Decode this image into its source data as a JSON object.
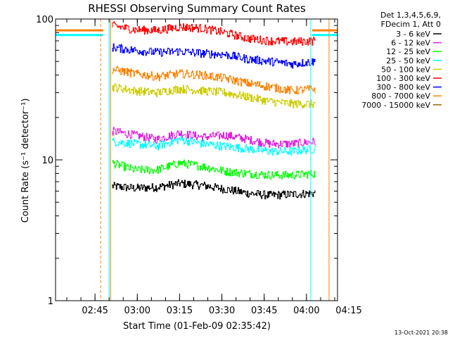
{
  "chart_data": {
    "type": "line",
    "title": "RHESSI Observing Summary Count Rates",
    "xlabel": "Start Time (01-Feb-09 02:35:42)",
    "ylabel": "Count Rate (s⁻¹ detector⁻¹)",
    "yscale": "log",
    "ylim": [
      1,
      100
    ],
    "y_ticks": [
      {
        "value": 1,
        "label": "1"
      },
      {
        "value": 10,
        "label": "10"
      },
      {
        "value": 100,
        "label": "100"
      }
    ],
    "xlim": [
      0,
      100
    ],
    "x_ticks": [
      {
        "value": 14,
        "label": "02:45"
      },
      {
        "value": 29,
        "label": "03:00"
      },
      {
        "value": 44,
        "label": "03:15"
      },
      {
        "value": 59,
        "label": "03:30"
      },
      {
        "value": 74,
        "label": "03:45"
      },
      {
        "value": 89,
        "label": "04:00"
      },
      {
        "value": 104,
        "label": "04:15"
      }
    ],
    "legend_header": [
      "Det 1,3,4,5,6,9,",
      "FDecim 1, Att 0"
    ],
    "series": [
      {
        "name": "3 - 6 keV",
        "color": "#000000",
        "x": [
          20,
          28,
          36,
          44,
          52,
          60,
          68,
          76,
          84,
          92
        ],
        "values": [
          6.5,
          6.3,
          6.4,
          6.8,
          6.6,
          6.2,
          5.8,
          5.6,
          5.7,
          5.8
        ]
      },
      {
        "name": "6 - 12 keV",
        "color": "#e020e0",
        "x": [
          20,
          28,
          36,
          44,
          52,
          60,
          68,
          76,
          84,
          92
        ],
        "values": [
          16,
          15,
          14,
          15.5,
          14.5,
          15,
          14,
          13,
          13,
          13.5
        ]
      },
      {
        "name": "12 - 25 keV",
        "color": "#00ff00",
        "x": [
          20,
          28,
          36,
          44,
          52,
          60,
          68,
          76,
          84,
          92
        ],
        "values": [
          9.5,
          8.5,
          8.5,
          9.5,
          9.0,
          8.3,
          8.0,
          7.8,
          7.8,
          8.0
        ]
      },
      {
        "name": "25 - 50 keV",
        "color": "#00ffff",
        "x": [
          20,
          28,
          36,
          44,
          52,
          60,
          68,
          76,
          84,
          92
        ],
        "values": [
          13.5,
          13,
          12.5,
          14,
          13,
          12.5,
          12,
          11.5,
          11.5,
          12
        ]
      },
      {
        "name": "50 - 100 keV",
        "color": "#cccc00",
        "x": [
          20,
          28,
          36,
          44,
          52,
          60,
          68,
          76,
          84,
          92
        ],
        "values": [
          33,
          31,
          30,
          32,
          31,
          30,
          28,
          26,
          25,
          25
        ]
      },
      {
        "name": "100 - 300 keV",
        "color": "#ff0000",
        "x": [
          20,
          28,
          36,
          44,
          52,
          60,
          68,
          76,
          84,
          92
        ],
        "values": [
          90,
          84,
          83,
          88,
          86,
          80,
          73,
          70,
          69,
          70
        ]
      },
      {
        "name": "300 - 800 keV",
        "color": "#0000ff",
        "x": [
          20,
          28,
          36,
          44,
          52,
          60,
          68,
          76,
          84,
          92
        ],
        "values": [
          63,
          60,
          58,
          59,
          57,
          56,
          52,
          50,
          48,
          50
        ]
      },
      {
        "name": "800 - 7000 keV",
        "color": "#ff8000",
        "x": [
          20,
          28,
          36,
          44,
          52,
          60,
          68,
          76,
          84,
          92
        ],
        "values": [
          44,
          41,
          39,
          41,
          40,
          38,
          35,
          33,
          31,
          32
        ]
      },
      {
        "name": "7000 - 15000 keV",
        "color": "#a06000",
        "x": [],
        "values": []
      }
    ],
    "flat_segments": [
      {
        "color": "#00ffff",
        "x": [
          0,
          17
        ],
        "value": 77
      },
      {
        "color": "#ff8000",
        "x": [
          0,
          17
        ],
        "value": 83
      },
      {
        "color": "#00ffff",
        "x": [
          91,
          100
        ],
        "value": 77
      },
      {
        "color": "#ff8000",
        "x": [
          91,
          100
        ],
        "value": 83
      }
    ],
    "vertical_markers": [
      {
        "x": 16,
        "color": "#ff8000",
        "style": "dashed"
      },
      {
        "x": 19,
        "color": "#00ffff",
        "style": "solid"
      },
      {
        "x": 19.5,
        "color": "#ff8000",
        "style": "solid"
      },
      {
        "x": 90.5,
        "color": "#00ffff",
        "style": "solid"
      },
      {
        "x": 97,
        "color": "#ff8000",
        "style": "solid"
      },
      {
        "x": 100,
        "color": "#ff8000",
        "style": "dashed"
      }
    ],
    "legend_position": "top-right"
  },
  "timestamp": "13-Oct-2021 20:38"
}
